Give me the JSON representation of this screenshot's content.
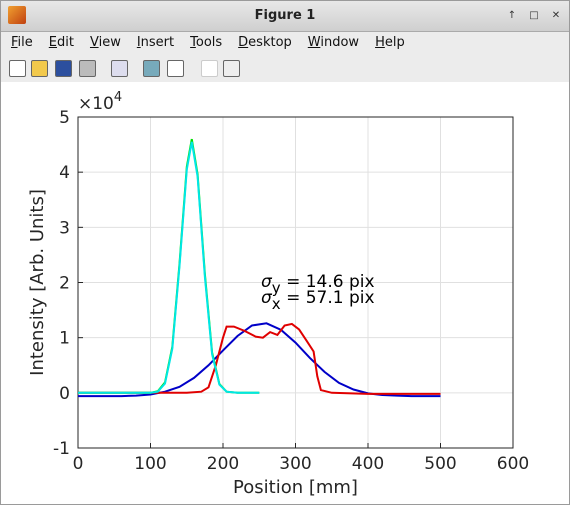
{
  "window": {
    "title": "Figure 1",
    "menu": [
      "File",
      "Edit",
      "View",
      "Insert",
      "Tools",
      "Desktop",
      "Window",
      "Help"
    ]
  },
  "chart_data": {
    "type": "line",
    "xlabel": "Position [mm]",
    "ylabel": "Intensity [Arb. Units]",
    "y_exponent_base": "×10",
    "y_exponent": "4",
    "xlim": [
      0,
      600
    ],
    "xticks": [
      0,
      100,
      200,
      300,
      400,
      500,
      600
    ],
    "ylim": [
      -1,
      5
    ],
    "yticks": [
      -1,
      0,
      1,
      2,
      3,
      4,
      5
    ],
    "grid": true,
    "annotations": [
      {
        "symbol": "σ",
        "subscript": "y",
        "text": " = 14.6 pix"
      },
      {
        "symbol": "σ",
        "subscript": "x",
        "text": " = 57.1 pix"
      }
    ],
    "series": [
      {
        "color": "#0000c8",
        "x": [
          0,
          20,
          40,
          60,
          80,
          100,
          120,
          140,
          160,
          180,
          200,
          220,
          240,
          260,
          280,
          300,
          320,
          340,
          360,
          380,
          400,
          420,
          440,
          460,
          480,
          500
        ],
        "values": [
          -0.06,
          -0.06,
          -0.06,
          -0.06,
          -0.05,
          -0.03,
          0.02,
          0.11,
          0.27,
          0.5,
          0.77,
          1.03,
          1.22,
          1.26,
          1.14,
          0.91,
          0.63,
          0.38,
          0.18,
          0.06,
          -0.01,
          -0.04,
          -0.05,
          -0.06,
          -0.06,
          -0.06
        ]
      },
      {
        "color": "#e00000",
        "x": [
          0,
          50,
          100,
          150,
          170,
          180,
          190,
          200,
          205,
          215,
          230,
          245,
          255,
          265,
          275,
          285,
          295,
          305,
          315,
          325,
          330,
          335,
          350,
          400,
          450,
          500
        ],
        "values": [
          0,
          0,
          0,
          0,
          0.02,
          0.1,
          0.5,
          1.0,
          1.2,
          1.2,
          1.12,
          1.02,
          1.0,
          1.1,
          1.05,
          1.22,
          1.25,
          1.15,
          0.95,
          0.75,
          0.3,
          0.05,
          0,
          -0.02,
          -0.02,
          -0.02
        ]
      },
      {
        "color": "#00e000",
        "x": [
          0,
          100,
          110,
          120,
          130,
          140,
          150,
          157,
          165,
          175,
          185,
          195,
          205,
          220,
          250
        ],
        "values": [
          0,
          0,
          0.03,
          0.19,
          0.83,
          2.34,
          4.1,
          4.6,
          3.96,
          2.15,
          0.73,
          0.16,
          0.02,
          0,
          0
        ]
      },
      {
        "color": "#00e6e6",
        "x": [
          0,
          100,
          110,
          120,
          130,
          140,
          150,
          157,
          165,
          175,
          185,
          195,
          205,
          220,
          250
        ],
        "values": [
          0,
          0,
          0.02,
          0.17,
          0.8,
          2.3,
          4.05,
          4.55,
          3.92,
          2.1,
          0.7,
          0.15,
          0.02,
          0,
          0
        ]
      }
    ]
  }
}
